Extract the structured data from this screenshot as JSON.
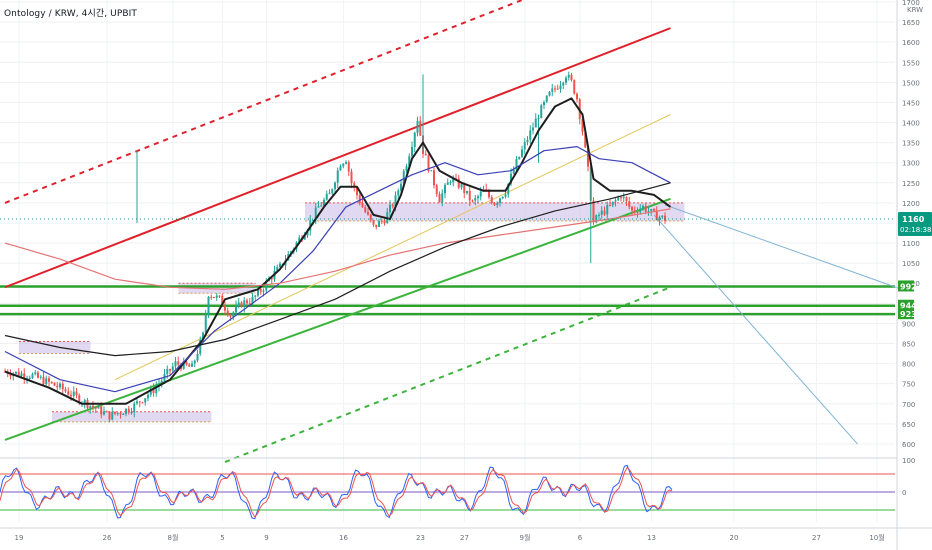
{
  "header": {
    "symbol_title": "Ontology / KRW, 4시간, UPBIT",
    "currency": "KRW"
  },
  "price_badge": {
    "price": "1160",
    "countdown": "02:18:38",
    "color": "#089981"
  },
  "level_labels": [
    {
      "text": "992",
      "value": 992
    },
    {
      "text": "944",
      "value": 944
    },
    {
      "text": "923",
      "value": 923
    }
  ],
  "colors": {
    "up": "#26a69a",
    "down": "#ef5350",
    "channel": "#e0202a",
    "support": "#3bb43b",
    "level": "#2ca02c",
    "ma_black": "#1e1e1e",
    "ma_red": "#e57373",
    "ma_navy": "#3a3fb5",
    "ma_yellow": "#e3c65a",
    "zone_fill": "#c9b8e8",
    "projection": "#7fb3d5"
  },
  "chart_data": {
    "type": "candlestick",
    "y_axis": {
      "ticks": [
        600,
        650,
        700,
        750,
        800,
        850,
        900,
        950,
        1000,
        1050,
        1100,
        1150,
        1200,
        1250,
        1300,
        1350,
        1400,
        1450,
        1500,
        1550,
        1600,
        1650,
        1700
      ],
      "range": [
        565,
        1705
      ]
    },
    "x_axis": {
      "tick_labels": [
        "19",
        "26",
        "8월",
        "5",
        "9",
        "16",
        "23",
        "27",
        "9월",
        "6",
        "13",
        "20",
        "27",
        "10월"
      ]
    },
    "price_path": [
      [
        0,
        780
      ],
      [
        5,
        770
      ],
      [
        10,
        740
      ],
      [
        15,
        700
      ],
      [
        19,
        670
      ],
      [
        23,
        690
      ],
      [
        27,
        735
      ],
      [
        31,
        800
      ],
      [
        34,
        790
      ],
      [
        36,
        870
      ],
      [
        37,
        975
      ],
      [
        39,
        960
      ],
      [
        41,
        920
      ],
      [
        43,
        950
      ],
      [
        45,
        960
      ],
      [
        47,
        990
      ],
      [
        48,
        1010
      ],
      [
        50,
        1040
      ],
      [
        52,
        1080
      ],
      [
        53,
        1100
      ],
      [
        55,
        1140
      ],
      [
        57,
        1190
      ],
      [
        59,
        1220
      ],
      [
        60,
        1260
      ],
      [
        61,
        1300
      ],
      [
        62,
        1310
      ],
      [
        63,
        1250
      ],
      [
        65,
        1190
      ],
      [
        67,
        1140
      ],
      [
        69,
        1160
      ],
      [
        71,
        1210
      ],
      [
        73,
        1300
      ],
      [
        74,
        1350
      ],
      [
        75,
        1410
      ],
      [
        76,
        1330
      ],
      [
        77,
        1290
      ],
      [
        78,
        1250
      ],
      [
        79,
        1210
      ],
      [
        81,
        1260
      ],
      [
        83,
        1240
      ],
      [
        85,
        1200
      ],
      [
        87,
        1230
      ],
      [
        89,
        1200
      ],
      [
        91,
        1230
      ],
      [
        93,
        1300
      ],
      [
        95,
        1360
      ],
      [
        97,
        1420
      ],
      [
        99,
        1470
      ],
      [
        101,
        1500
      ],
      [
        102,
        1520
      ],
      [
        103,
        1500
      ],
      [
        104,
        1460
      ],
      [
        105,
        1380
      ],
      [
        106,
        1280
      ],
      [
        107,
        1150
      ],
      [
        108,
        1170
      ],
      [
        110,
        1190
      ],
      [
        112,
        1220
      ],
      [
        114,
        1180
      ],
      [
        116,
        1190
      ],
      [
        118,
        1170
      ],
      [
        120,
        1160
      ]
    ],
    "moving_averages": [
      {
        "name": "fast",
        "color": "#1e1e1e",
        "points": [
          [
            0,
            780
          ],
          [
            8,
            740
          ],
          [
            14,
            700
          ],
          [
            22,
            700
          ],
          [
            30,
            760
          ],
          [
            36,
            860
          ],
          [
            40,
            960
          ],
          [
            46,
            985
          ],
          [
            50,
            1035
          ],
          [
            54,
            1110
          ],
          [
            58,
            1190
          ],
          [
            61,
            1240
          ],
          [
            64,
            1240
          ],
          [
            67,
            1170
          ],
          [
            70,
            1160
          ],
          [
            72,
            1220
          ],
          [
            74,
            1310
          ],
          [
            76,
            1350
          ],
          [
            79,
            1280
          ],
          [
            83,
            1250
          ],
          [
            87,
            1230
          ],
          [
            91,
            1230
          ],
          [
            94,
            1300
          ],
          [
            97,
            1380
          ],
          [
            100,
            1440
          ],
          [
            103,
            1460
          ],
          [
            105,
            1420
          ],
          [
            107,
            1260
          ],
          [
            110,
            1230
          ],
          [
            114,
            1230
          ],
          [
            118,
            1220
          ],
          [
            121,
            1190
          ]
        ]
      },
      {
        "name": "mid",
        "color": "#3a3fb5",
        "points": [
          [
            0,
            830
          ],
          [
            10,
            760
          ],
          [
            20,
            730
          ],
          [
            30,
            770
          ],
          [
            38,
            880
          ],
          [
            44,
            940
          ],
          [
            50,
            1000
          ],
          [
            56,
            1080
          ],
          [
            62,
            1190
          ],
          [
            68,
            1230
          ],
          [
            74,
            1270
          ],
          [
            80,
            1300
          ],
          [
            86,
            1270
          ],
          [
            92,
            1280
          ],
          [
            98,
            1330
          ],
          [
            104,
            1340
          ],
          [
            108,
            1310
          ],
          [
            114,
            1300
          ],
          [
            121,
            1250
          ]
        ]
      },
      {
        "name": "slow",
        "color": "#e57373",
        "points": [
          [
            0,
            1100
          ],
          [
            10,
            1060
          ],
          [
            20,
            1010
          ],
          [
            30,
            990
          ],
          [
            40,
            985
          ],
          [
            50,
            1000
          ],
          [
            60,
            1030
          ],
          [
            70,
            1070
          ],
          [
            80,
            1100
          ],
          [
            90,
            1120
          ],
          [
            100,
            1140
          ],
          [
            110,
            1160
          ],
          [
            121,
            1185
          ]
        ]
      },
      {
        "name": "long",
        "color": "#1e1e1e",
        "points": [
          [
            0,
            870
          ],
          [
            10,
            840
          ],
          [
            20,
            820
          ],
          [
            30,
            830
          ],
          [
            40,
            860
          ],
          [
            50,
            910
          ],
          [
            60,
            960
          ],
          [
            70,
            1030
          ],
          [
            80,
            1090
          ],
          [
            90,
            1140
          ],
          [
            100,
            1180
          ],
          [
            110,
            1210
          ],
          [
            121,
            1250
          ]
        ]
      }
    ],
    "trendlines": [
      {
        "name": "channel_upper",
        "color": "#e0202a",
        "dash": false,
        "points": [
          [
            0,
            990
          ],
          [
            121,
            1635
          ]
        ]
      },
      {
        "name": "channel_outer",
        "color": "#e0202a",
        "dash": true,
        "points": [
          [
            0,
            1200
          ],
          [
            94,
            1705
          ]
        ]
      },
      {
        "name": "support_main",
        "color": "#3bb43b",
        "dash": false,
        "points": [
          [
            0,
            610
          ],
          [
            121,
            1210
          ]
        ]
      },
      {
        "name": "support_lower",
        "color": "#3bb43b",
        "dash": true,
        "points": [
          [
            40,
            555
          ],
          [
            121,
            990
          ]
        ]
      },
      {
        "name": "mid_channel",
        "color": "#e3c65a",
        "dash": false,
        "points": [
          [
            20,
            760
          ],
          [
            121,
            1420
          ]
        ]
      },
      {
        "name": "proj_high",
        "color": "#7fb3d5",
        "dash": false,
        "points": [
          [
            120,
            1195
          ],
          [
            163,
            985
          ]
        ]
      },
      {
        "name": "proj_low",
        "color": "#7fb3d5",
        "dash": false,
        "points": [
          [
            118,
            1170
          ],
          [
            155,
            600
          ]
        ]
      }
    ],
    "zones": [
      {
        "name": "resistance_zone",
        "x": [
          52,
          121
        ],
        "y": [
          1155,
          1200
        ]
      },
      {
        "name": "zone_mid",
        "x": [
          29,
          43
        ],
        "y": [
          975,
          1000
        ]
      },
      {
        "name": "zone_low",
        "x": [
          0,
          13
        ],
        "y": [
          825,
          855
        ]
      },
      {
        "name": "zone_bottom",
        "x": [
          6,
          35
        ],
        "y": [
          655,
          680
        ]
      }
    ],
    "oscillator": {
      "upper": 80,
      "lower": 20,
      "mid": 50,
      "label": "100",
      "zero_label": "0"
    }
  }
}
